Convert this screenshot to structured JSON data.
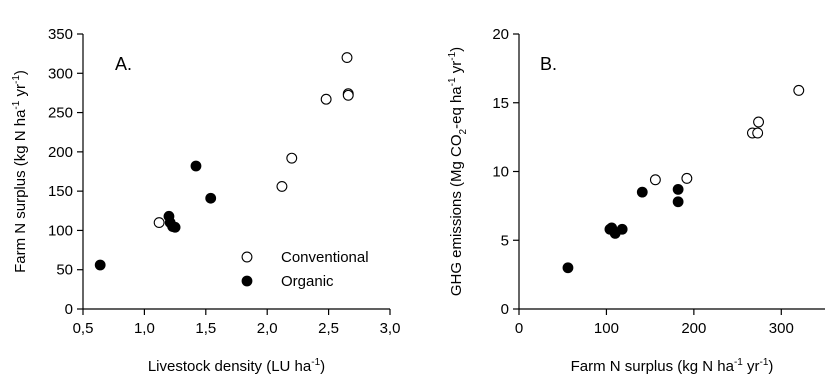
{
  "chart_data": [
    {
      "type": "scatter",
      "panel_label": "A.",
      "xlabel": "Livestock density (LU ha⁻¹)",
      "ylabel": "Farm N surplus (kg N ha⁻¹ yr⁻¹)",
      "xlim": [
        0.5,
        3.0
      ],
      "ylim": [
        0,
        350
      ],
      "xticks": [
        "0,5",
        "1,0",
        "1,5",
        "2,0",
        "2,5",
        "3,0"
      ],
      "yticks": [
        "0",
        "50",
        "100",
        "150",
        "200",
        "250",
        "300",
        "350"
      ],
      "grid": false,
      "legend_position": "bottom-right",
      "series": [
        {
          "name": "Conventional",
          "marker": "open-circle",
          "color": "#000000",
          "points": [
            [
              1.12,
              110
            ],
            [
              2.12,
              156
            ],
            [
              2.2,
              192
            ],
            [
              2.48,
              267
            ],
            [
              2.65,
              320
            ],
            [
              2.66,
              274
            ],
            [
              2.66,
              272
            ]
          ]
        },
        {
          "name": "Organic",
          "marker": "filled-circle",
          "color": "#000000",
          "points": [
            [
              0.64,
              56
            ],
            [
              1.2,
              118
            ],
            [
              1.21,
              110
            ],
            [
              1.23,
              105
            ],
            [
              1.25,
              104
            ],
            [
              1.42,
              182
            ],
            [
              1.54,
              141
            ]
          ]
        }
      ]
    },
    {
      "type": "scatter",
      "panel_label": "B.",
      "xlabel": "Farm N surplus (kg N ha⁻¹ yr⁻¹)",
      "ylabel": "GHG emissions (Mg CO₂-eq ha⁻¹ yr⁻¹)",
      "xlim": [
        0,
        350
      ],
      "ylim": [
        0,
        20
      ],
      "xticks": [
        "0",
        "100",
        "200",
        "300"
      ],
      "yticks": [
        "0",
        "5",
        "10",
        "15",
        "20"
      ],
      "grid": false,
      "series": [
        {
          "name": "Conventional",
          "marker": "open-circle",
          "color": "#000000",
          "points": [
            [
              156,
              9.4
            ],
            [
              192,
              9.5
            ],
            [
              267,
              12.8
            ],
            [
              273,
              12.8
            ],
            [
              274,
              13.6
            ],
            [
              320,
              15.9
            ]
          ]
        },
        {
          "name": "Organic",
          "marker": "filled-circle",
          "color": "#000000",
          "points": [
            [
              56,
              3.0
            ],
            [
              104,
              5.8
            ],
            [
              106,
              5.9
            ],
            [
              110,
              5.5
            ],
            [
              118,
              5.8
            ],
            [
              141,
              8.5
            ],
            [
              182,
              8.7
            ],
            [
              182,
              7.8
            ]
          ]
        }
      ]
    }
  ]
}
